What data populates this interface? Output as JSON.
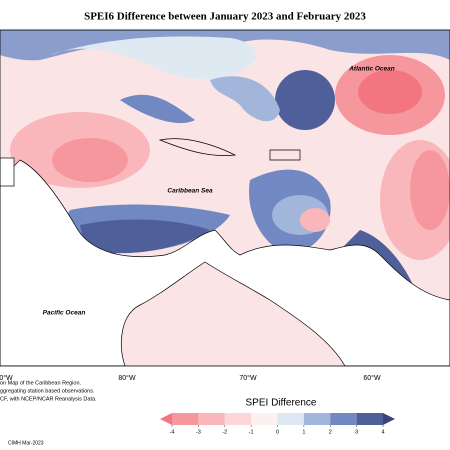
{
  "title": "SPEI6 Difference between January 2023 and February 2023",
  "map_labels": [
    "Atlantic Ocean",
    "Caribbean Sea",
    "Pacific Ocean"
  ],
  "longitude_labels": [
    "0°W",
    "80°W",
    "70°W",
    "60°W"
  ],
  "notes": [
    "on Map of the Caribbean Region.",
    "ggregating station based observations.",
    "CF, with NCEP/NCAR Reanalysis Data."
  ],
  "credit": "CIMH Mar-2023",
  "legend": {
    "title": "SPEI Difference",
    "ticks": [
      -4,
      -3,
      -2,
      -1,
      0,
      1,
      2,
      3,
      4
    ],
    "colors": [
      "#f3757f",
      "#f6979d",
      "#f9b7bb",
      "#fcd6d8",
      "#fdf0f0",
      "#dde8f2",
      "#a2b5da",
      "#7288c2",
      "#4f5f9a",
      "#3b437a"
    ]
  }
}
